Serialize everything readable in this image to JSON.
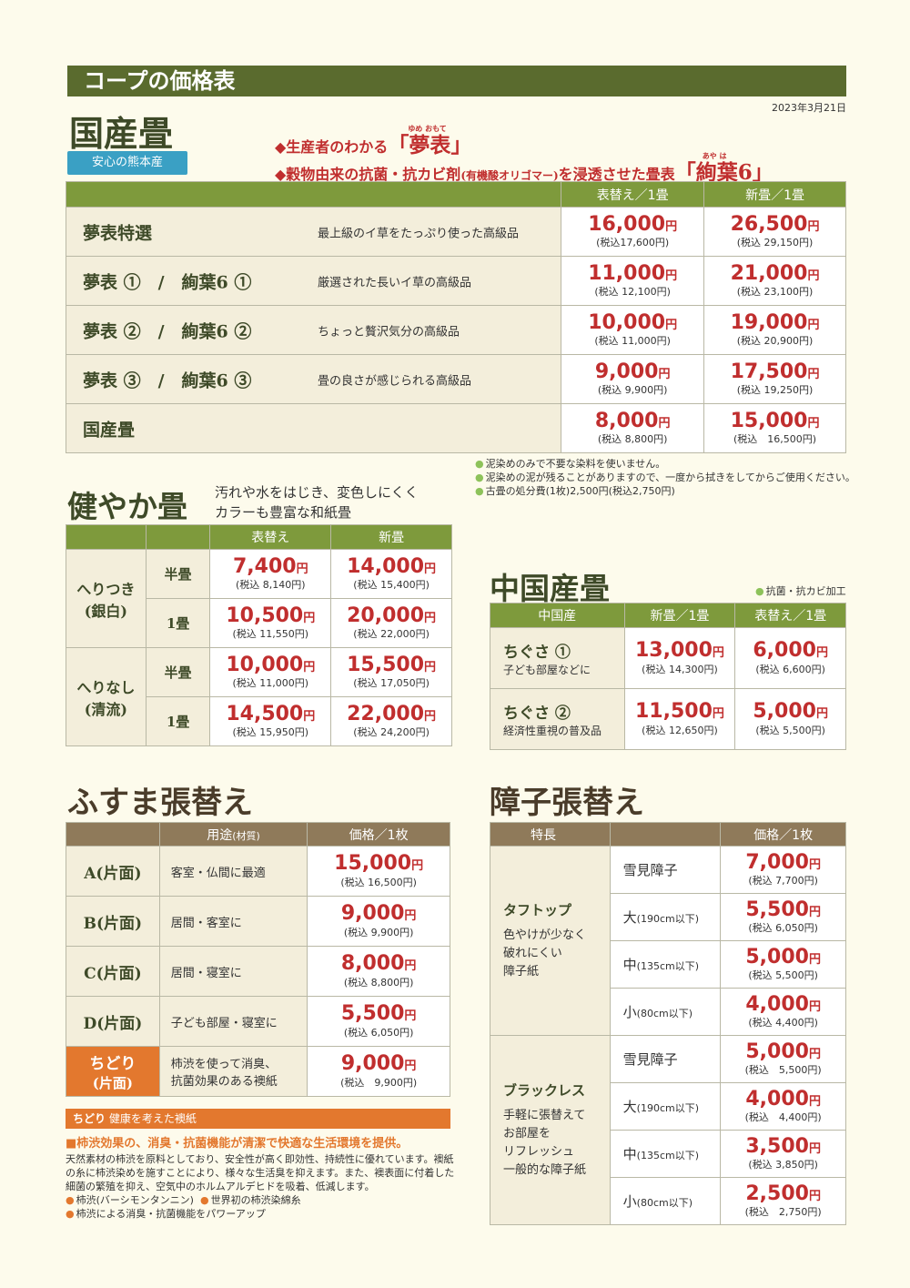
{
  "banner": "コープの価格表",
  "date": "2023年3月21日",
  "kokusan": {
    "title": "国産畳",
    "badge": "安心の熊本産",
    "feature1_prefix": "◆生産者のわかる",
    "feature1_name": "「夢表」",
    "feature1_ruby": "ゆめ おもて",
    "feature2_prefix": "◆穀物由来の抗菌・抗カビ剤",
    "feature2_paren": "(有機酸オリゴマー)",
    "feature2_mid": "を浸透させた畳表",
    "feature2_name": "「絢葉6」",
    "feature2_ruby": "あや は",
    "headers": [
      "表替え／1畳",
      "新畳／1畳"
    ],
    "rows": [
      {
        "name": "夢表特選",
        "desc": "最上級のイ草をたっぷり使った高級品",
        "p1": "16,000",
        "t1": "(税込17,600円)",
        "p2": "26,500",
        "t2": "(税込 29,150円)"
      },
      {
        "name": "夢表 ①　/　絢葉6 ①",
        "desc": "厳選された長いイ草の高級品",
        "p1": "11,000",
        "t1": "(税込 12,100円)",
        "p2": "21,000",
        "t2": "(税込 23,100円)"
      },
      {
        "name": "夢表 ②　/　絢葉6 ②",
        "desc": "ちょっと贅沢気分の高級品",
        "p1": "10,000",
        "t1": "(税込 11,000円)",
        "p2": "19,000",
        "t2": "(税込 20,900円)"
      },
      {
        "name": "夢表 ③　/　絢葉6 ③",
        "desc": "畳の良さが感じられる高級品",
        "p1": "9,000",
        "t1": "(税込 9,900円)",
        "p2": "17,500",
        "t2": "(税込 19,250円)"
      },
      {
        "name": "国産畳",
        "desc": "",
        "p1": "8,000",
        "t1": "(税込 8,800円)",
        "p2": "15,000",
        "t2": "(税込　16,500円)"
      }
    ],
    "notes": [
      "泥染めのみで不要な染料を使いません。",
      "泥染めの泥が残ることがありますので、一度から拭きをしてからご使用ください。",
      "古畳の処分費(1枚)2,500円(税込2,750円)"
    ]
  },
  "yen": "円",
  "sukoyaka": {
    "title": "健やか畳",
    "lead1": "汚れや水をはじき、変色しにくく",
    "lead2": "カラーも豊富な和紙畳",
    "headers": [
      "表替え",
      "新畳"
    ],
    "groups": [
      {
        "name1": "へりつき",
        "name2": "(銀白)",
        "rows": [
          {
            "size": "半畳",
            "p1": "7,400",
            "t1": "(税込 8,140円)",
            "p2": "14,000",
            "t2": "(税込 15,400円)"
          },
          {
            "size": "1畳",
            "p1": "10,500",
            "t1": "(税込 11,550円)",
            "p2": "20,000",
            "t2": "(税込 22,000円)"
          }
        ]
      },
      {
        "name1": "へりなし",
        "name2": "(清流)",
        "rows": [
          {
            "size": "半畳",
            "p1": "10,000",
            "t1": "(税込 11,000円)",
            "p2": "15,500",
            "t2": "(税込 17,050円)"
          },
          {
            "size": "1畳",
            "p1": "14,500",
            "t1": "(税込 15,950円)",
            "p2": "22,000",
            "t2": "(税込 24,200円)"
          }
        ]
      }
    ]
  },
  "chugoku": {
    "title": "中国産畳",
    "note": "抗菌・抗カビ加工",
    "headers": [
      "中国産",
      "新畳／1畳",
      "表替え／1畳"
    ],
    "rows": [
      {
        "name": "ちぐさ ①",
        "sub": "子ども部屋などに",
        "p1": "13,000",
        "t1": "(税込 14,300円)",
        "p2": "6,000",
        "t2": "(税込 6,600円)"
      },
      {
        "name": "ちぐさ ②",
        "sub": "経済性重視の普及品",
        "p1": "11,500",
        "t1": "(税込 12,650円)",
        "p2": "5,000",
        "t2": "(税込 5,500円)"
      }
    ]
  },
  "fusuma": {
    "title": "ふすま張替え",
    "headers": [
      "用途",
      "(材質)",
      "価格／1枚"
    ],
    "rows": [
      {
        "name": "A(片面)",
        "use": "客室・仏間に最適",
        "p": "15,000",
        "t": "(税込 16,500円)"
      },
      {
        "name": "B(片面)",
        "use": "居間・客室に",
        "p": "9,000",
        "t": "(税込 9,900円)"
      },
      {
        "name": "C(片面)",
        "use": "居間・寝室に",
        "p": "8,000",
        "t": "(税込 8,800円)"
      },
      {
        "name": "D(片面)",
        "use": "子ども部屋・寝室に",
        "p": "5,500",
        "t": "(税込 6,050円)"
      },
      {
        "name": "ちどり",
        "name2": "(片面)",
        "use": "柿渋を使って消臭、",
        "use2": "抗菌効果のある襖紙",
        "p": "9,000",
        "t": "(税込　9,900円)"
      }
    ],
    "bar_name": "ちどり",
    "bar_text": "健康を考えた襖紙",
    "lead": "■柿渋効果の、消臭・抗菌機能が清潔で快適な生活環境を提供。",
    "body": "天然素材の柿渋を原料としており、安全性が高く即効性、持続性に優れています。襖紙の糸に柿渋染めを施すことにより、様々な生活臭を抑えます。また、襖表面に付着した細菌の繁殖を抑え、空気中のホルムアルデヒドを吸着、低減します。",
    "bullets": [
      "柿渋(バーシモンタンニン)",
      "世界初の柿渋染綿糸",
      "柿渋による消臭・抗菌機能をパワーアップ"
    ]
  },
  "shoji": {
    "title": "障子張替え",
    "headers": [
      "特長",
      "価格／1枚"
    ],
    "groups": [
      {
        "name": "タフトップ",
        "desc": [
          "色やけが少なく",
          "破れにくい",
          "障子紙"
        ],
        "rows": [
          {
            "size": "雪見障子",
            "dim": "",
            "p": "7,000",
            "t": "(税込 7,700円)"
          },
          {
            "size": "大",
            "dim": "(190cm以下)",
            "p": "5,500",
            "t": "(税込 6,050円)"
          },
          {
            "size": "中",
            "dim": "(135cm以下)",
            "p": "5,000",
            "t": "(税込 5,500円)"
          },
          {
            "size": "小",
            "dim": "(80cm以下)",
            "p": "4,000",
            "t": "(税込 4,400円)"
          }
        ]
      },
      {
        "name": "ブラックレス",
        "desc": [
          "手軽に張替えて",
          "お部屋を",
          "リフレッシュ",
          "一般的な障子紙"
        ],
        "rows": [
          {
            "size": "雪見障子",
            "dim": "",
            "p": "5,000",
            "t": "(税込　5,500円)"
          },
          {
            "size": "大",
            "dim": "(190cm以下)",
            "p": "4,000",
            "t": "(税込　4,400円)"
          },
          {
            "size": "中",
            "dim": "(135cm以下)",
            "p": "3,500",
            "t": "(税込 3,850円)"
          },
          {
            "size": "小",
            "dim": "(80cm以下)",
            "p": "2,500",
            "t": "(税込　2,750円)"
          }
        ]
      }
    ]
  }
}
